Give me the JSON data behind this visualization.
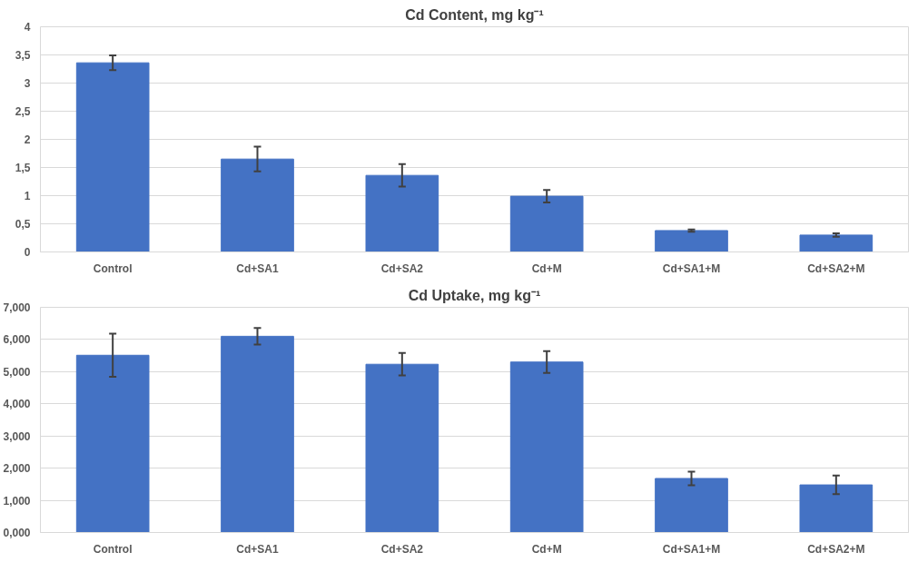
{
  "chart_data": [
    {
      "type": "bar",
      "title": "Cd Content, mg kg⁻¹",
      "categories": [
        "Control",
        "Cd+SA1",
        "Cd+SA2",
        "Cd+M",
        "Cd+SA1+M",
        "Cd+SA2+M"
      ],
      "values": [
        3.36,
        1.65,
        1.36,
        0.99,
        0.38,
        0.3
      ],
      "errors": [
        0.13,
        0.22,
        0.2,
        0.11,
        0.02,
        0.03
      ],
      "color": "#4472c4",
      "ylim": [
        0,
        4
      ],
      "yticks": [
        0,
        {
          "value": 0.5,
          "label": "0,5"
        },
        1,
        {
          "value": 1.5,
          "label": "1,5"
        },
        2,
        {
          "value": 2.5,
          "label": "2,5"
        },
        3,
        {
          "value": 3.5,
          "label": "3,5"
        },
        4
      ],
      "grid": "y",
      "legend": false
    },
    {
      "type": "bar",
      "title": "Cd Uptake, mg kg⁻¹",
      "categories": [
        "Control",
        "Cd+SA1",
        "Cd+SA2",
        "Cd+M",
        "Cd+SA1+M",
        "Cd+SA2+M"
      ],
      "values": [
        5.51,
        6.1,
        5.23,
        5.3,
        1.68,
        1.48
      ],
      "errors": [
        0.67,
        0.26,
        0.35,
        0.34,
        0.21,
        0.29
      ],
      "color": "#4472c4",
      "ylim": [
        0,
        7
      ],
      "yticks": [
        {
          "value": 0,
          "label": "0,000"
        },
        {
          "value": 1,
          "label": "1,000"
        },
        {
          "value": 2,
          "label": "2,000"
        },
        {
          "value": 3,
          "label": "3,000"
        },
        {
          "value": 4,
          "label": "4,000"
        },
        {
          "value": 5,
          "label": "5,000"
        },
        {
          "value": 6,
          "label": "6,000"
        },
        {
          "value": 7,
          "label": "7,000"
        }
      ],
      "grid": "y",
      "legend": false
    }
  ]
}
